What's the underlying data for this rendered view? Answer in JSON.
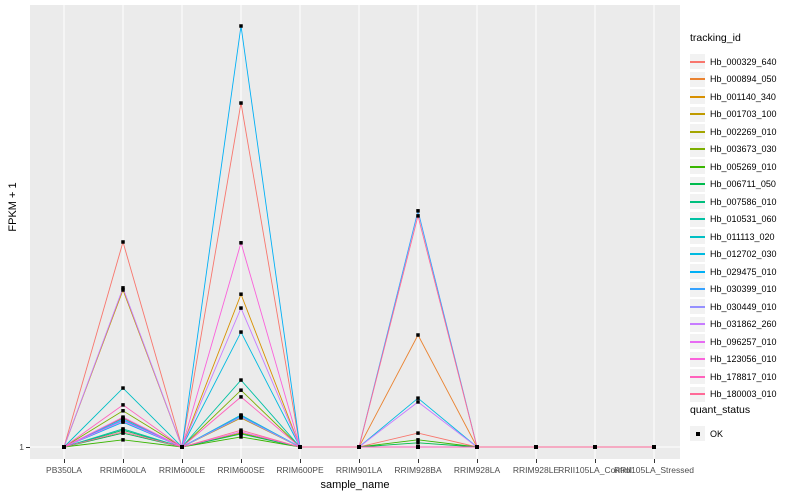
{
  "figure": {
    "panel_bg": "#EBEBEB",
    "grid_color": "#FFFFFF",
    "tick_color": "#333333",
    "tick_label_color": "#4D4D4D",
    "marker_color": "#000000",
    "legend_key_bg": "#F2F2F2"
  },
  "axes": {
    "x_title": "sample_name",
    "y_title": "FPKM + 1",
    "y_tick_label": "1"
  },
  "legend": {
    "tracking_title": "tracking_id",
    "quant_title": "quant_status",
    "quant_ok_label": "OK"
  },
  "chart_data": {
    "type": "line",
    "title": "",
    "xlabel": "sample_name",
    "ylabel": "FPKM + 1",
    "legend_position": "right",
    "grid": "vertical white major gridlines at each sample; horizontal gridline at y = 1",
    "marker": "filled black square at every data point (quant_status = OK)",
    "y_axis": {
      "visible_ticks": [
        "1"
      ],
      "baseline_value": 1,
      "note": "Only the tick '1' is labeled; series values are expressed as fraction of full panel height above the FPKM+1 = 1 baseline (1.0 = tallest visible peak)"
    },
    "categories": [
      "PB350LA",
      "RRIM600LA",
      "RRIM600LE",
      "RRIM600SE",
      "RRIM600PE",
      "RRIM901LA",
      "RRIM928BA",
      "RRIM928LA",
      "RRIM928LE",
      "RRII105LA_Control",
      "RRII105LA_Stressed"
    ],
    "series": [
      {
        "name": "Hb_000329_640",
        "color": "#F8766D",
        "height_frac": [
          0,
          0.487,
          0,
          0.817,
          0,
          0,
          0.033,
          0,
          0,
          0,
          0
        ]
      },
      {
        "name": "Hb_000894_050",
        "color": "#EA8331",
        "height_frac": [
          0,
          0.062,
          0,
          0.033,
          0,
          0,
          0.266,
          0,
          0,
          0,
          0
        ]
      },
      {
        "name": "Hb_001140_340",
        "color": "#D89000",
        "height_frac": [
          0,
          0.04,
          0,
          0.363,
          0,
          0,
          0,
          0,
          0,
          0,
          0
        ]
      },
      {
        "name": "Hb_001703_100",
        "color": "#C09B00",
        "height_frac": [
          0,
          0.373,
          0,
          0.069,
          0,
          0,
          0,
          0,
          0,
          0,
          0
        ]
      },
      {
        "name": "Hb_002269_010",
        "color": "#A3A500",
        "height_frac": [
          0,
          0.069,
          0,
          0.033,
          0,
          0,
          0,
          0,
          0,
          0,
          0
        ]
      },
      {
        "name": "Hb_003673_030",
        "color": "#7CAE00",
        "height_frac": [
          0,
          0.086,
          0,
          0.135,
          0,
          0,
          0,
          0,
          0,
          0,
          0
        ]
      },
      {
        "name": "Hb_005269_010",
        "color": "#39B600",
        "height_frac": [
          0,
          0.017,
          0,
          0.024,
          0,
          0,
          0.017,
          0,
          0,
          0,
          0
        ]
      },
      {
        "name": "Hb_006711_050",
        "color": "#00BB4E",
        "height_frac": [
          0,
          0.033,
          0,
          0.031,
          0,
          0,
          0.01,
          0,
          0,
          0,
          0
        ]
      },
      {
        "name": "Hb_007586_010",
        "color": "#00BF7D",
        "height_frac": [
          0,
          0.04,
          0,
          0.074,
          0,
          0,
          0,
          0,
          0,
          0,
          0
        ]
      },
      {
        "name": "Hb_010531_060",
        "color": "#00C1A3",
        "height_frac": [
          0,
          0.043,
          0,
          0.159,
          0,
          0,
          0,
          0,
          0,
          0,
          0
        ]
      },
      {
        "name": "Hb_011113_020",
        "color": "#00BFC4",
        "height_frac": [
          0,
          0.14,
          0,
          0.076,
          0,
          0,
          0,
          0,
          0,
          0,
          0
        ]
      },
      {
        "name": "Hb_012702_030",
        "color": "#00BAE0",
        "height_frac": [
          0,
          0.064,
          0,
          0.273,
          0,
          0,
          0.116,
          0,
          0,
          0,
          0
        ]
      },
      {
        "name": "Hb_029475_010",
        "color": "#00B0F6",
        "height_frac": [
          0,
          0.059,
          0,
          1.0,
          0,
          0,
          0,
          0,
          0,
          0,
          0
        ]
      },
      {
        "name": "Hb_030399_010",
        "color": "#35A2FF",
        "height_frac": [
          0,
          0.067,
          0,
          0.074,
          0,
          0,
          0.561,
          0,
          0,
          0,
          0
        ]
      },
      {
        "name": "Hb_030449_010",
        "color": "#9590FF",
        "height_frac": [
          0,
          0.062,
          0,
          0.071,
          0,
          0,
          0,
          0,
          0,
          0,
          0
        ]
      },
      {
        "name": "Hb_031862_260",
        "color": "#C77CFF",
        "height_frac": [
          0,
          0.378,
          0,
          0.33,
          0,
          0,
          0.107,
          0,
          0,
          0,
          0
        ]
      },
      {
        "name": "Hb_096257_010",
        "color": "#E76BF3",
        "height_frac": [
          0,
          0.062,
          0,
          0.036,
          0,
          0,
          0,
          0,
          0,
          0,
          0
        ]
      },
      {
        "name": "Hb_123056_010",
        "color": "#FA62DB",
        "height_frac": [
          0,
          0.071,
          0,
          0.485,
          0,
          0,
          0,
          0,
          0,
          0,
          0
        ]
      },
      {
        "name": "Hb_178817_010",
        "color": "#FF62BC",
        "height_frac": [
          0,
          0.1,
          0,
          0.119,
          0,
          0,
          0,
          0,
          0,
          0,
          0
        ]
      },
      {
        "name": "Hb_180003_010",
        "color": "#FF6A98",
        "height_frac": [
          0,
          0.036,
          0,
          0.04,
          0,
          0,
          0.549,
          0,
          0,
          0,
          0
        ]
      }
    ]
  }
}
